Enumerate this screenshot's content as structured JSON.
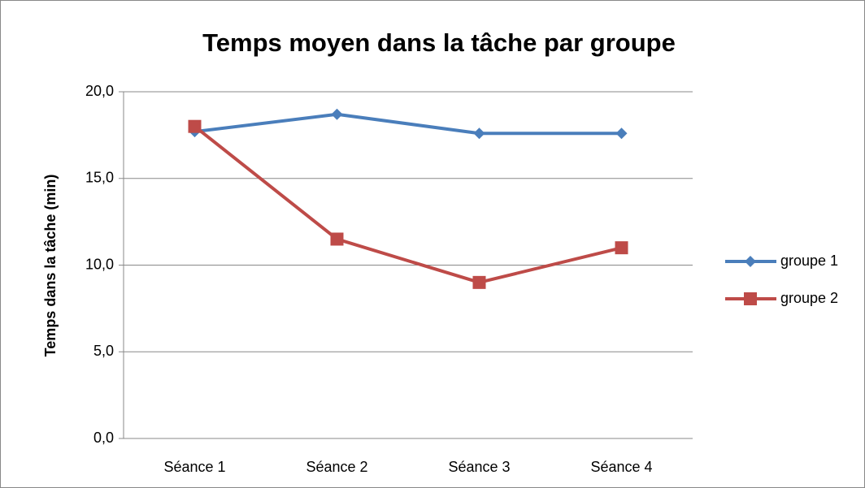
{
  "chart_data": {
    "type": "line",
    "title": "Temps moyen dans la tâche par groupe",
    "y_label": "Temps dans la tâche (min)",
    "categories": [
      "Séance 1",
      "Séance 2",
      "Séance 3",
      "Séance 4"
    ],
    "series": [
      {
        "name": "groupe 1",
        "color": "#4a7ebb",
        "marker": "diamond",
        "values": [
          17.7,
          18.7,
          17.6,
          17.6
        ]
      },
      {
        "name": "groupe 2",
        "color": "#be4b48",
        "marker": "square",
        "values": [
          18.0,
          11.5,
          9.0,
          11.0
        ]
      }
    ],
    "ylim": [
      0,
      20
    ],
    "yticks": [
      {
        "value": 0,
        "label": "0,0"
      },
      {
        "value": 5,
        "label": "5,0"
      },
      {
        "value": 10,
        "label": "10,0"
      },
      {
        "value": 15,
        "label": "15,0"
      },
      {
        "value": 20,
        "label": "20,0"
      }
    ],
    "grid": true,
    "legend": "right"
  }
}
